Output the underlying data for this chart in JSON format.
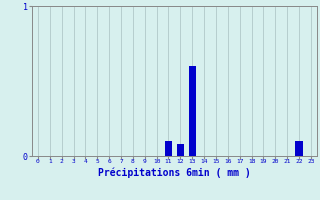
{
  "categories": [
    0,
    1,
    2,
    3,
    4,
    5,
    6,
    7,
    8,
    9,
    10,
    11,
    12,
    13,
    14,
    15,
    16,
    17,
    18,
    19,
    20,
    21,
    22,
    23
  ],
  "values": [
    0,
    0,
    0,
    0,
    0,
    0,
    0,
    0,
    0,
    0,
    0,
    0.1,
    0.08,
    0.6,
    0,
    0,
    0,
    0,
    0,
    0,
    0,
    0,
    0.1,
    0
  ],
  "bar_color": "#0000cc",
  "background_color": "#d7f0ee",
  "grid_color": "#b0c8c8",
  "xlabel": "Précipitations 6min ( mm )",
  "xlabel_color": "#0000cc",
  "ylim": [
    0,
    1.0
  ],
  "xlim": [
    -0.5,
    23.5
  ],
  "tick_color": "#0000cc",
  "axis_color": "#888888",
  "figsize": [
    3.2,
    2.0
  ],
  "dpi": 100
}
